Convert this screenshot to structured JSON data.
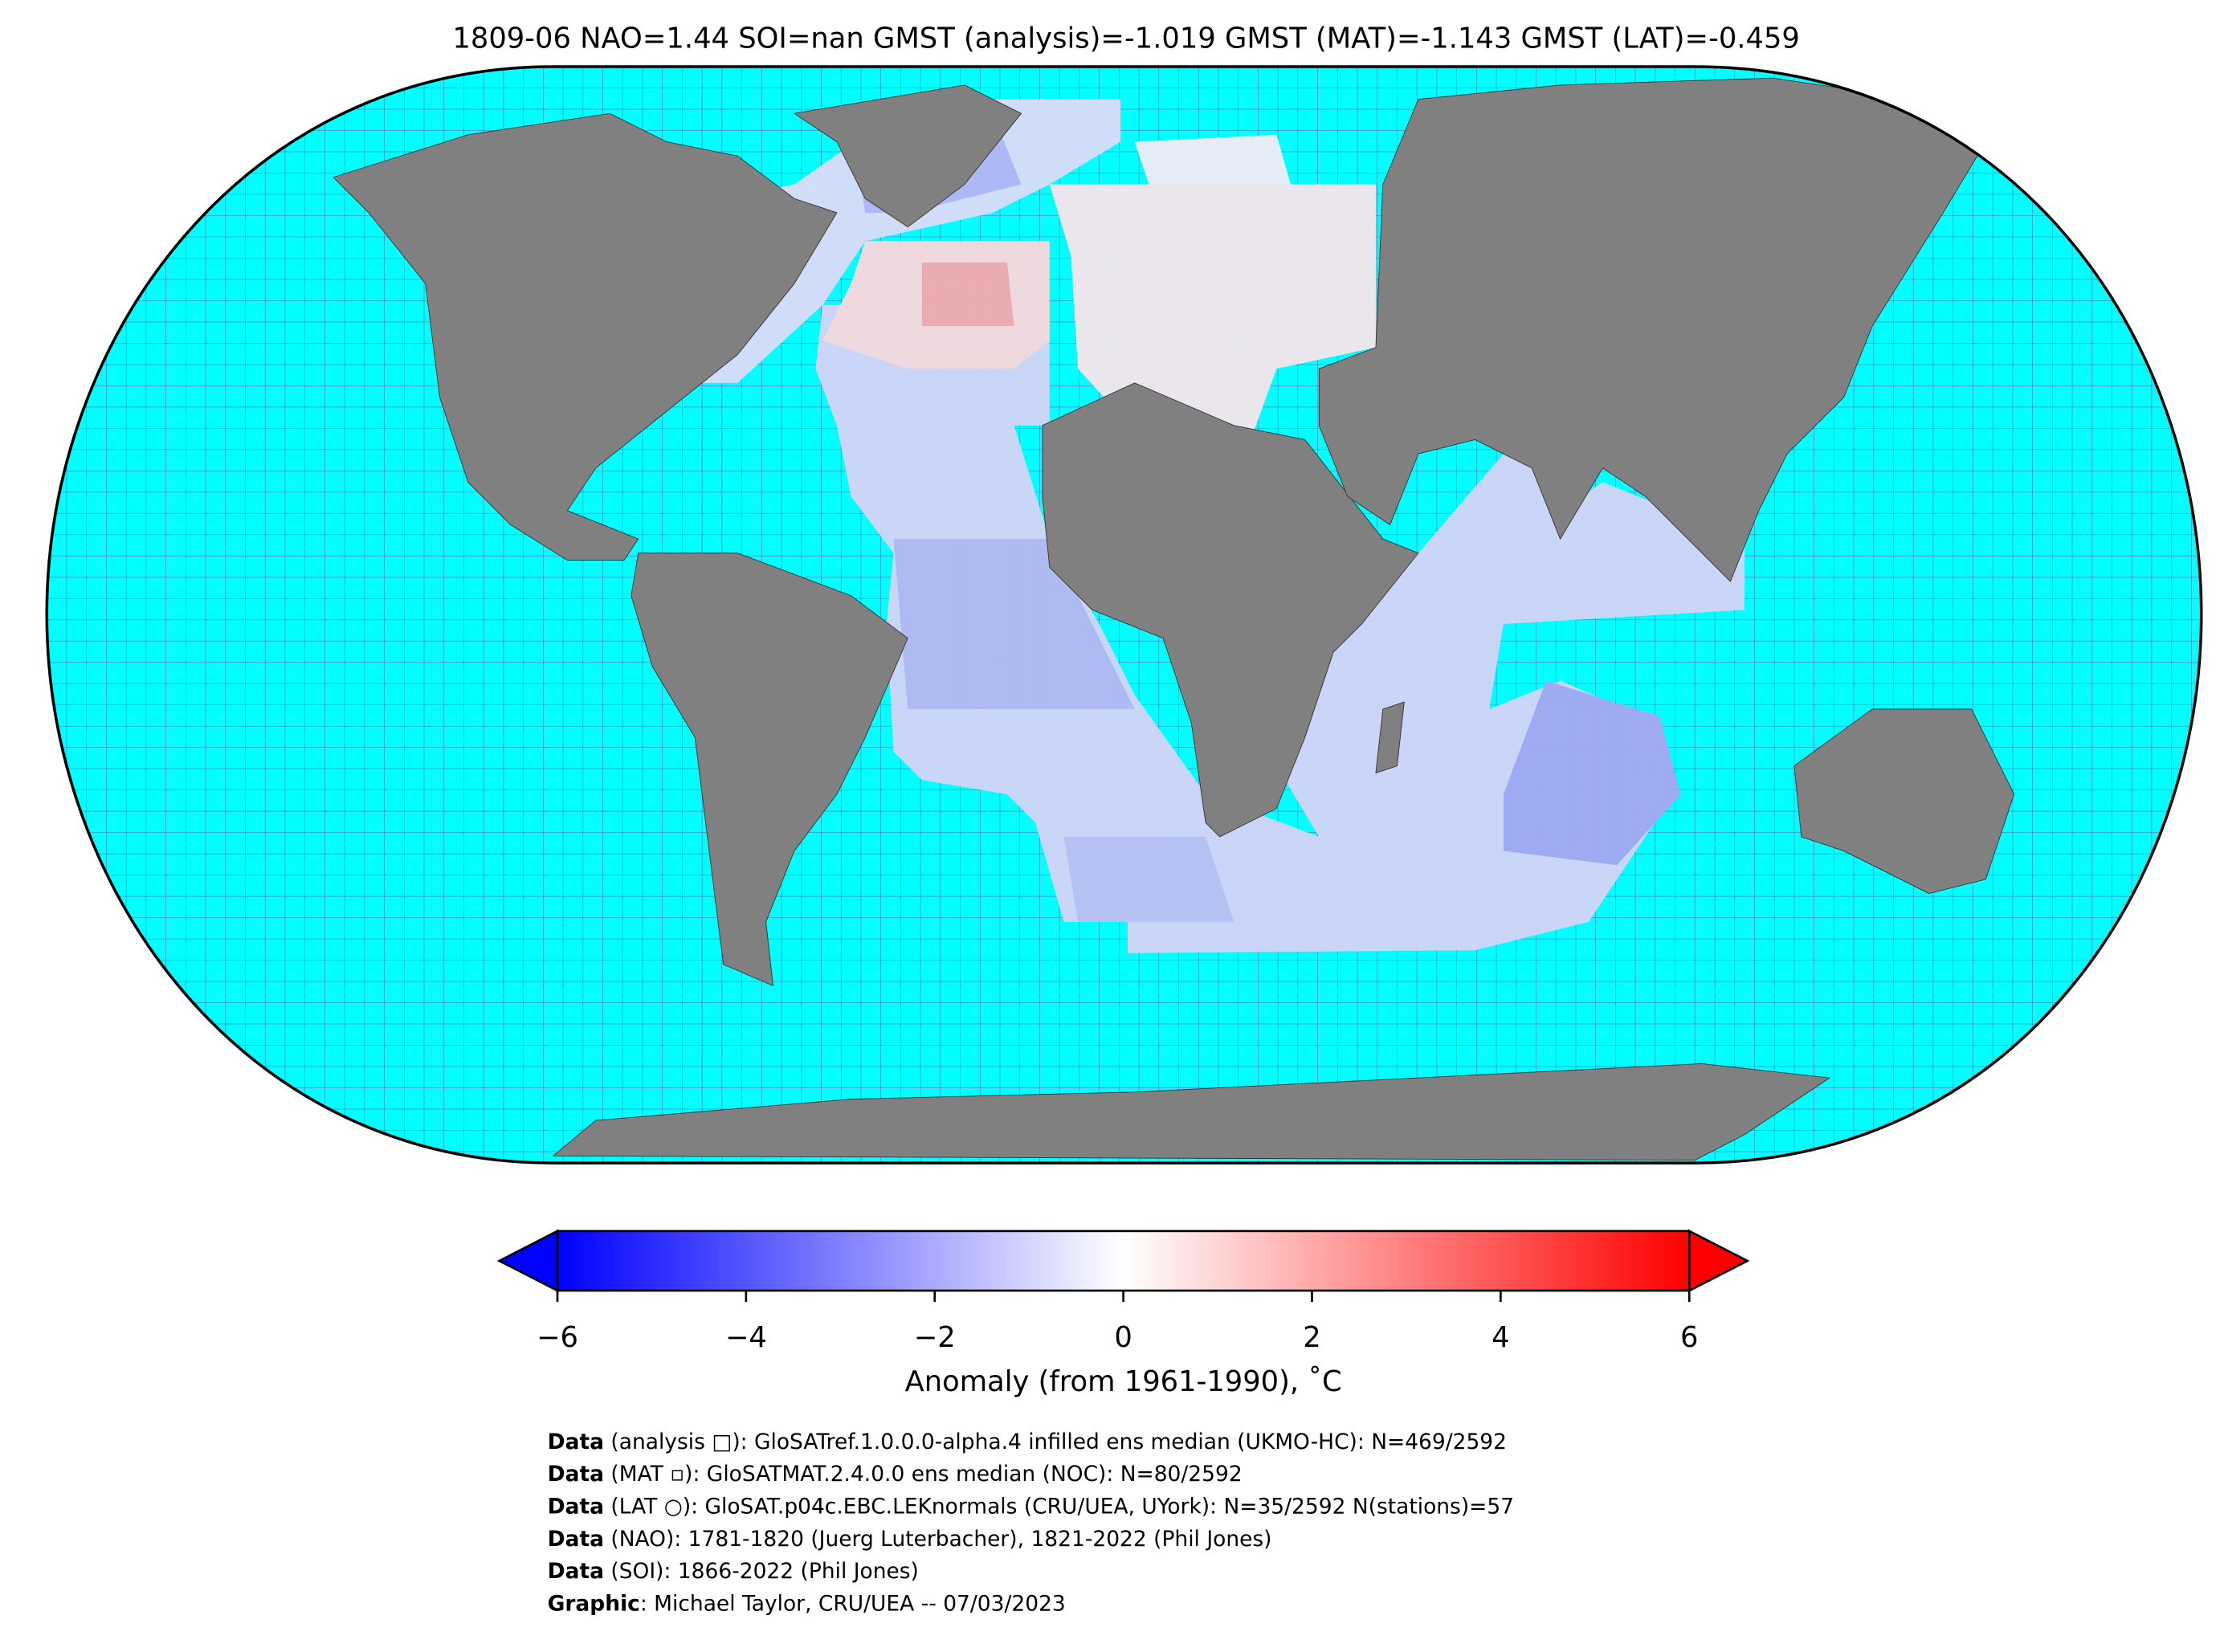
{
  "title": "1809-06 NAO=1.44 SOI=nan GMST (analysis)=-1.019 GMST (MAT)=-1.143 GMST (LAT)=-0.459",
  "colorbar": {
    "lim": [
      -6,
      6
    ],
    "ticks": [
      {
        "value": -6,
        "label": "−6"
      },
      {
        "value": -4,
        "label": "−4"
      },
      {
        "value": -2,
        "label": "−2"
      },
      0,
      2,
      4,
      6
    ],
    "colormap": [
      "#0000ff",
      "#ffffff",
      "#ff0000"
    ],
    "label": "Anomaly (from 1961-1990), ˚C"
  },
  "credits": [
    {
      "bold": "Data",
      "text": " (analysis □): GloSATref.1.0.0.0-alpha.4 infilled ens median (UKMO-HC): N=469/2592"
    },
    {
      "bold": "Data",
      "text": " (MAT ▫): GloSATMAT.2.4.0.0 ens median (NOC): N=80/2592"
    },
    {
      "bold": "Data",
      "text": " (LAT ○): GloSAT.p04c.EBC.LEKnormals (CRU/UEA, UYork): N=35/2592 N(stations)=57"
    },
    {
      "bold": "Data",
      "text": " (NAO): 1781-1820 (Juerg Luterbacher), 1821-2022 (Phil Jones)"
    },
    {
      "bold": "Data",
      "text": " (SOI): 1866-2022 (Phil Jones)"
    },
    {
      "bold": "Graphic",
      "text": ": Michael Taylor, CRU/UEA -- 07/03/2023"
    }
  ]
}
